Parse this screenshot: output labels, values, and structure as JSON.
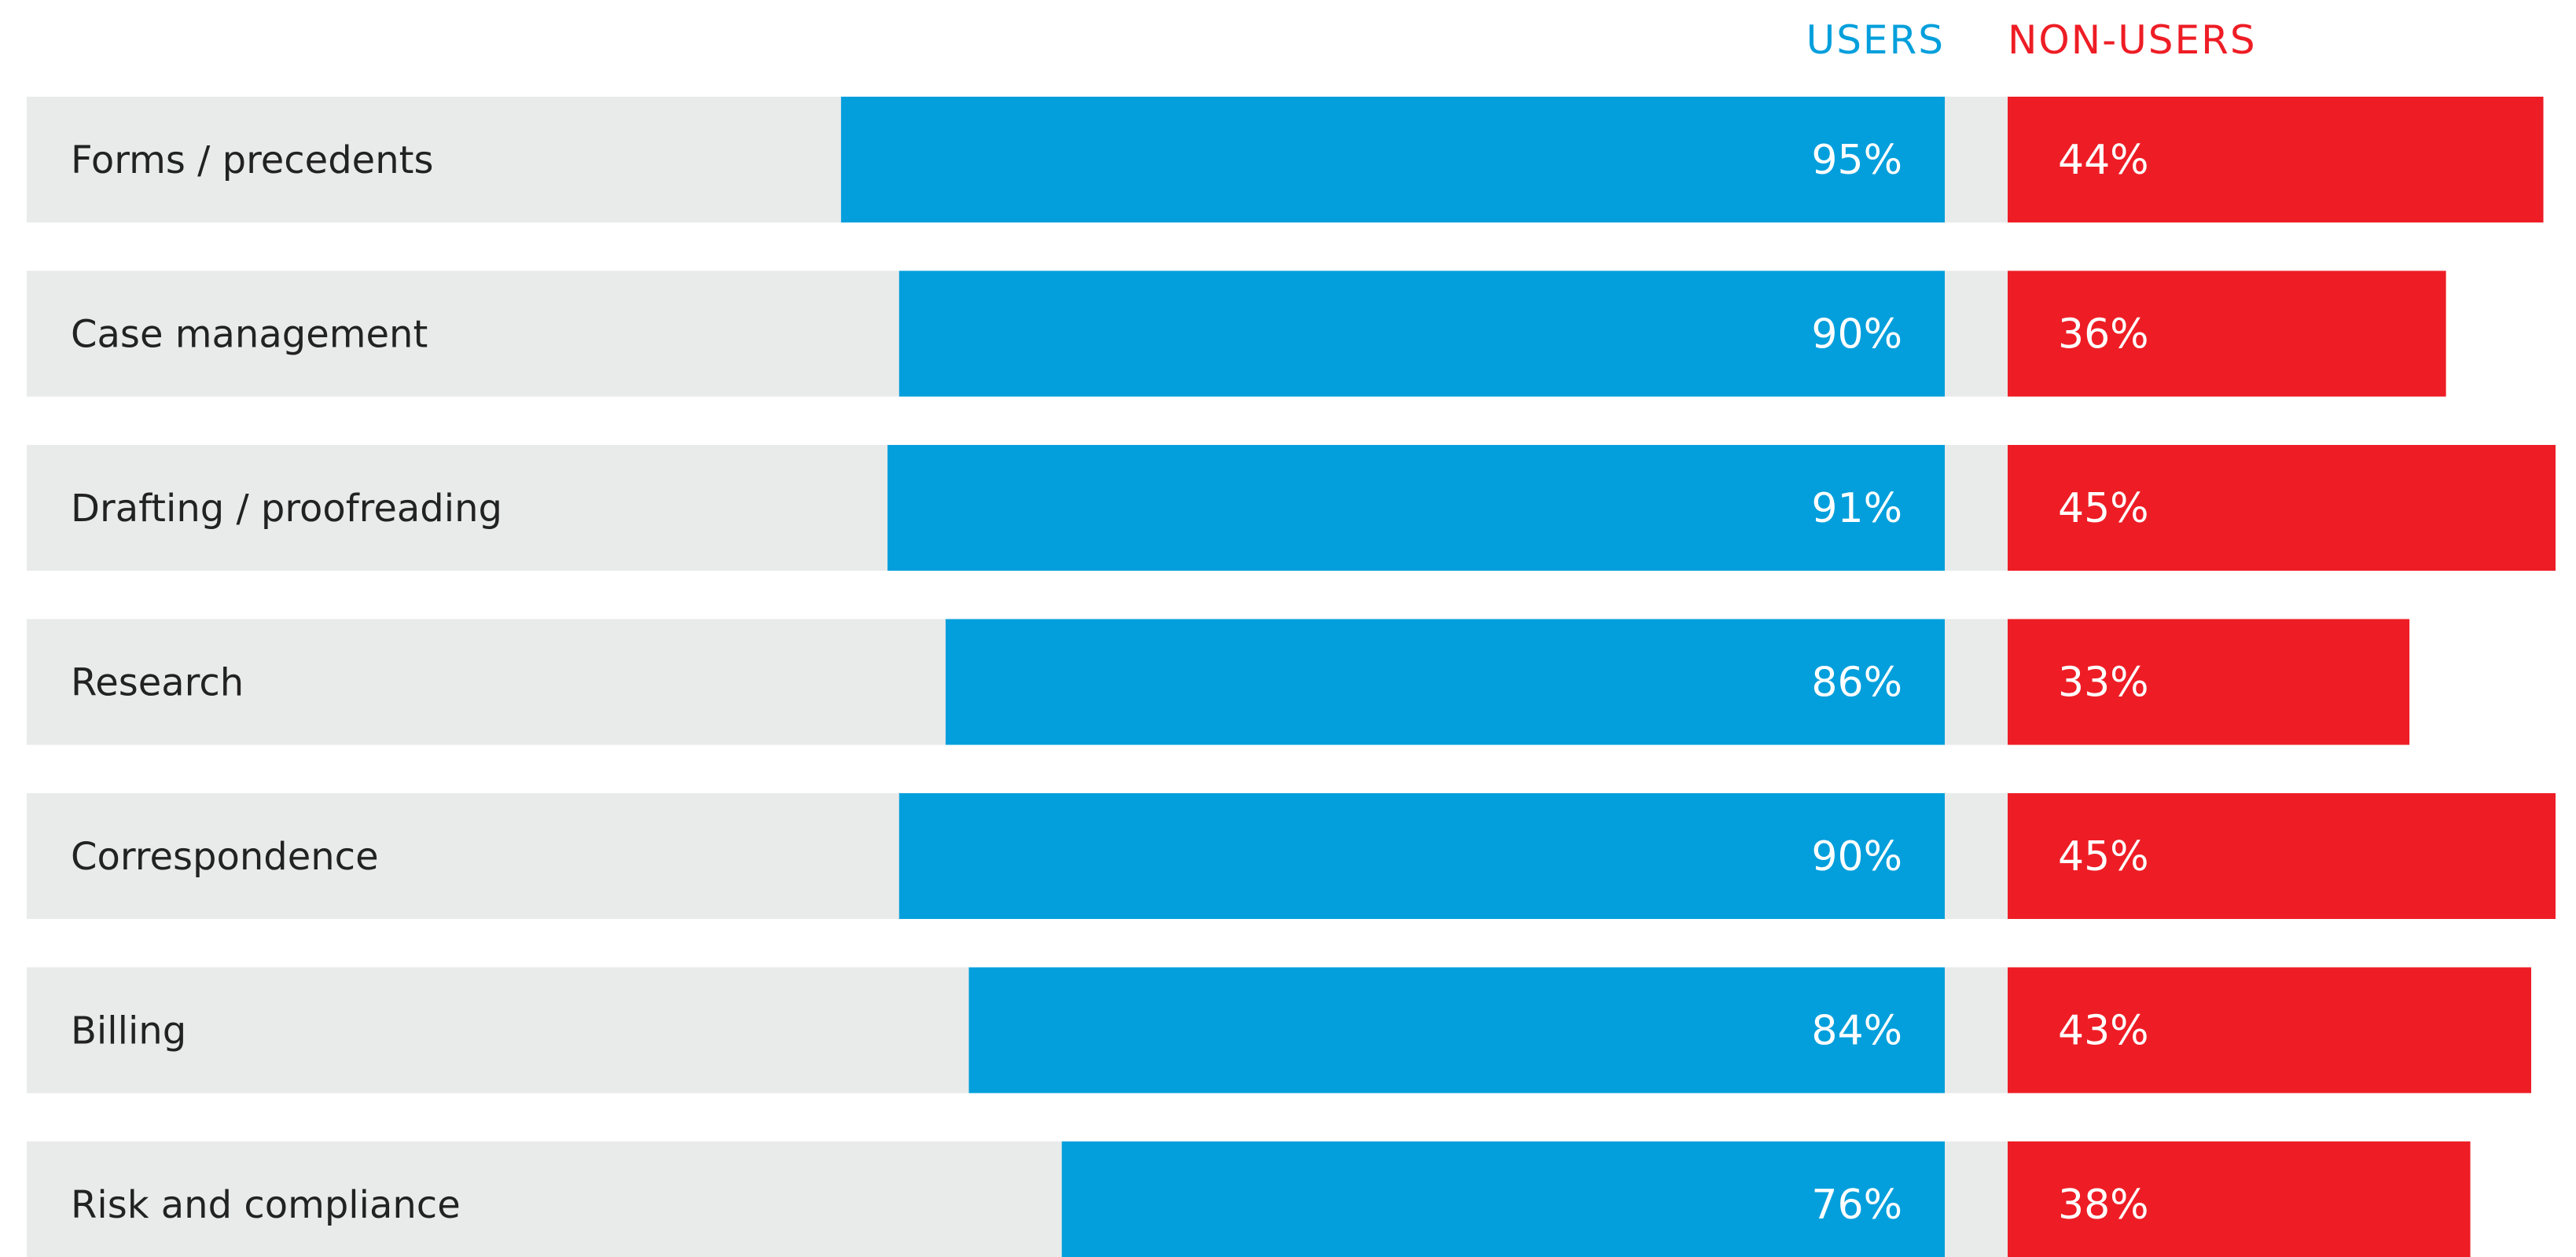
{
  "chart_data": {
    "type": "bar",
    "categories": [
      "Forms / precedents",
      "Case management",
      "Drafting / proofreading",
      "Research",
      "Correspondence",
      "Billing",
      "Risk and compliance"
    ],
    "series": [
      {
        "name": "USERS",
        "values": [
          95,
          90,
          91,
          86,
          90,
          84,
          76
        ],
        "labels": [
          "95%",
          "90%",
          "91%",
          "86%",
          "90%",
          "84%",
          "76%"
        ],
        "color": "#039fdc"
      },
      {
        "name": "NON-USERS",
        "values": [
          44,
          36,
          45,
          33,
          45,
          43,
          38
        ],
        "labels": [
          "44%",
          "36%",
          "45%",
          "33%",
          "45%",
          "43%",
          "38%"
        ],
        "color": "#ee1d25"
      }
    ],
    "title": "",
    "xlabel": "",
    "ylabel": "",
    "unit": "%",
    "grid": false,
    "legend_position": "top-right",
    "row_background_color": "#e9eaea"
  }
}
